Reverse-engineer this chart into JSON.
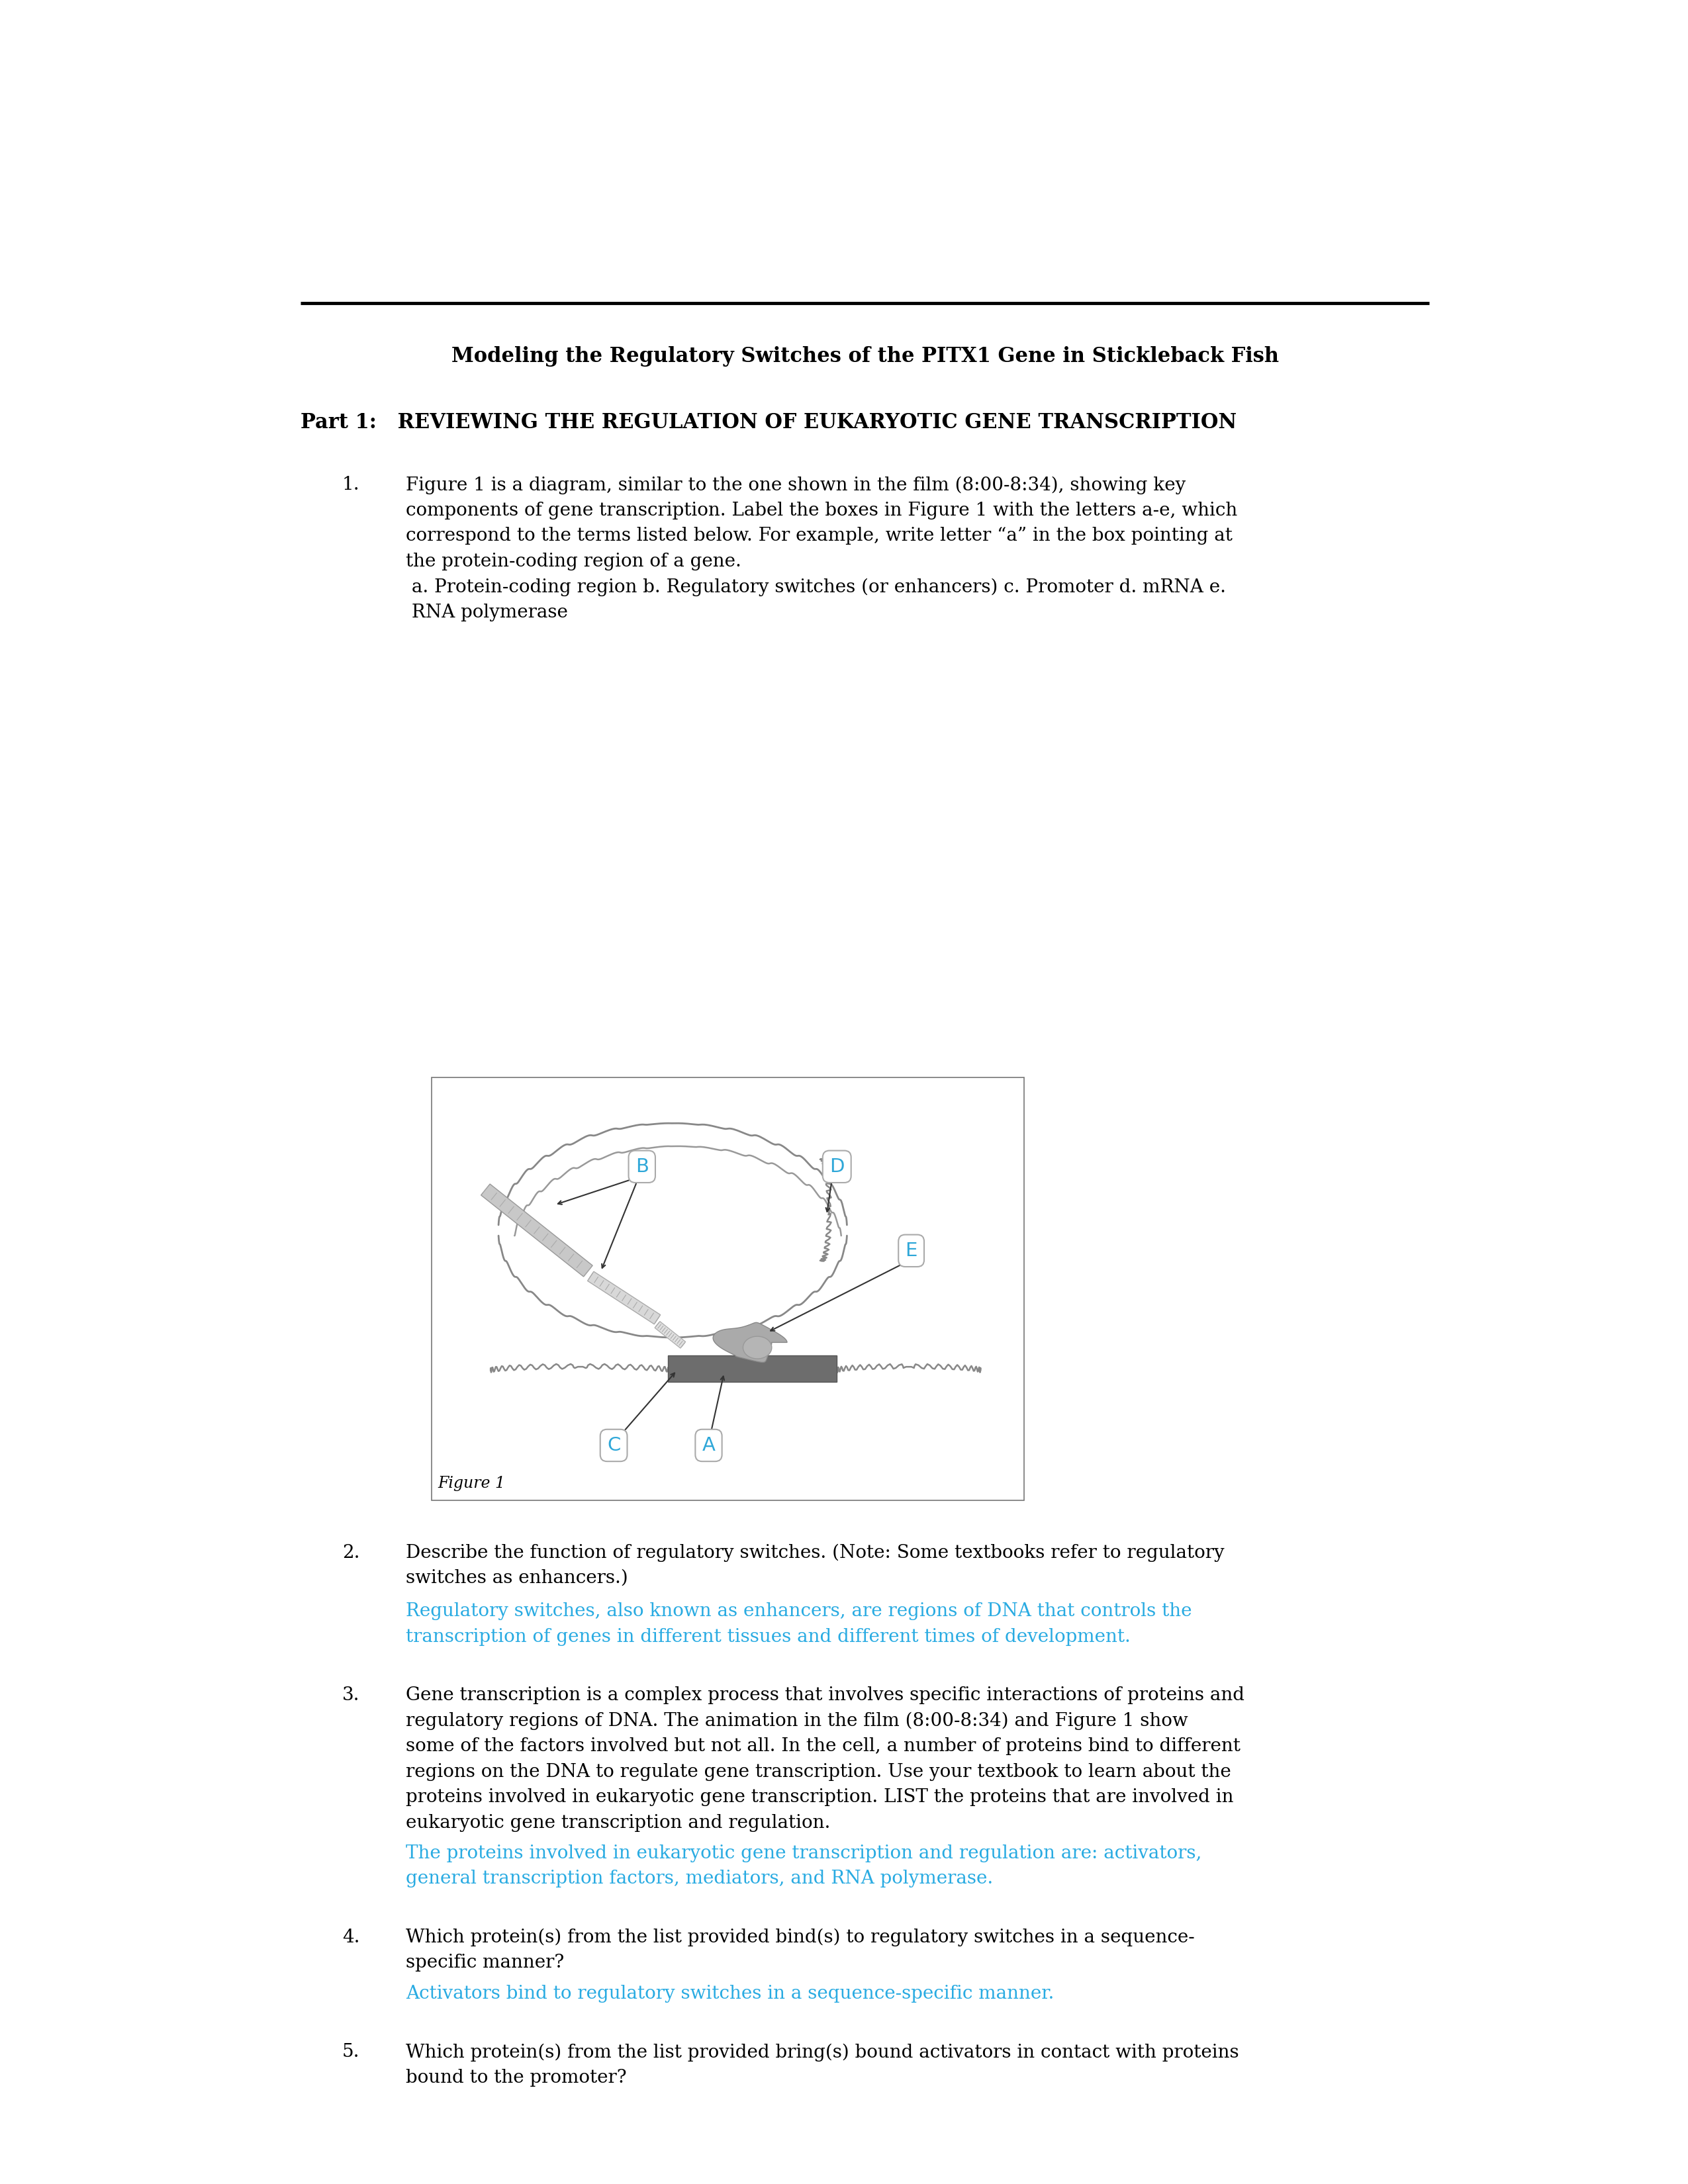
{
  "title": "Modeling the Regulatory Switches of the PITX1 Gene in Stickleback Fish",
  "part1_label": "Part 1:",
  "part1_text": " REVIEWING THE REGULATION OF EUKARYOTIC GENE TRANSCRIPTION",
  "q1_num": "1.",
  "q1_line1": "Figure 1 is a diagram, similar to the one shown in the film (8:00-8:34), showing key",
  "q1_line2": "components of gene transcription. Label the boxes in Figure 1 with the letters a-e, which",
  "q1_line3": "correspond to the terms listed below. For example, write letter “a” in the box pointing at",
  "q1_line4": "the protein-coding region of a gene.",
  "q1_line5": " a. Protein-coding region b. Regulatory switches (or enhancers) c. Promoter d. mRNA e.",
  "q1_line6": " RNA polymerase",
  "q2_num": "2.",
  "q2_line1": "Describe the function of regulatory switches. (Note: Some textbooks refer to regulatory",
  "q2_line2": "switches as enhancers.)",
  "q2_ans1": "Regulatory switches, also known as enhancers, are regions of DNA that controls the",
  "q2_ans2": "transcription of genes in different tissues and different times of development.",
  "q3_num": "3.",
  "q3_line1": "Gene transcription is a complex process that involves specific interactions of proteins and",
  "q3_line2": "regulatory regions of DNA. The animation in the film (8:00-8:34) and Figure 1 show",
  "q3_line3": "some of the factors involved but not all. In the cell, a number of proteins bind to different",
  "q3_line4": "regions on the DNA to regulate gene transcription. Use your textbook to learn about the",
  "q3_line5": "proteins involved in eukaryotic gene transcription. LIST the proteins that are involved in",
  "q3_line6": "eukaryotic gene transcription and regulation.",
  "q3_ans1": "The proteins involved in eukaryotic gene transcription and regulation are: activators,",
  "q3_ans2": "general transcription factors, mediators, and RNA polymerase.",
  "q4_num": "4.",
  "q4_line1": "Which protein(s) from the list provided bind(s) to regulatory switches in a sequence-",
  "q4_line2": "specific manner?",
  "q4_ans1": "Activators bind to regulatory switches in a sequence-specific manner.",
  "q5_num": "5.",
  "q5_line1": "Which protein(s) from the list provided bring(s) bound activators in contact with proteins",
  "q5_line2": "bound to the promoter?",
  "figure_label": "Figure 1",
  "bg_color": "#ffffff",
  "text_color": "#000000",
  "answer_color": "#29abe2",
  "line_color": "#000000"
}
